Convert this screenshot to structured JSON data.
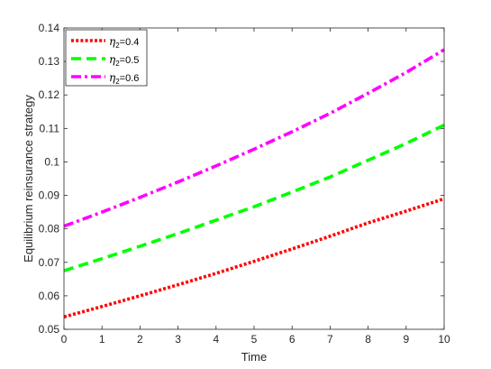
{
  "chart_data": {
    "type": "line",
    "xlabel": "Time",
    "ylabel": "Equilibrium reinsurance strategy",
    "xlim": [
      0,
      10
    ],
    "ylim": [
      0.05,
      0.14
    ],
    "xticks": [
      0,
      1,
      2,
      3,
      4,
      5,
      6,
      7,
      8,
      9,
      10
    ],
    "yticks": [
      0.05,
      0.06,
      0.07,
      0.08,
      0.09,
      0.1,
      0.11,
      0.12,
      0.13,
      0.14
    ],
    "ytick_labels": [
      "0.05",
      "0.06",
      "0.07",
      "0.08",
      "0.09",
      "0.1",
      "0.11",
      "0.12",
      "0.13",
      "0.14"
    ],
    "grid": false,
    "legend_position": "top-left",
    "x": [
      0,
      1,
      2,
      3,
      4,
      5,
      6,
      7,
      8,
      9,
      10
    ],
    "series": [
      {
        "name": "η2=0.4",
        "name_symbol": "η",
        "name_sub": "2",
        "name_rest": "=0.4",
        "color": "#ff0000",
        "style": "dotted",
        "values": [
          0.0537,
          0.0568,
          0.06,
          0.0633,
          0.0667,
          0.0703,
          0.074,
          0.0778,
          0.0818,
          0.0853,
          0.089
        ]
      },
      {
        "name": "η2=0.5",
        "name_symbol": "η",
        "name_sub": "2",
        "name_rest": "=0.5",
        "color": "#00ff00",
        "style": "dashed",
        "values": [
          0.0675,
          0.0711,
          0.0748,
          0.0786,
          0.0826,
          0.0866,
          0.091,
          0.0955,
          0.1005,
          0.1055,
          0.111
        ]
      },
      {
        "name": "η2=0.6",
        "name_symbol": "η",
        "name_sub": "2",
        "name_rest": "=0.6",
        "color": "#ff00ff",
        "style": "dashdot",
        "values": [
          0.0808,
          0.085,
          0.0894,
          0.094,
          0.0988,
          0.1038,
          0.109,
          0.1145,
          0.1205,
          0.1267,
          0.1335
        ]
      }
    ]
  }
}
